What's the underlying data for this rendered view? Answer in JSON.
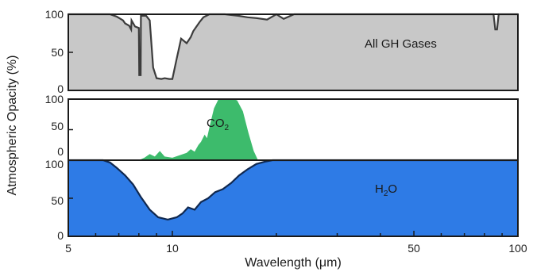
{
  "chart_data": [
    {
      "type": "area",
      "panel": "top",
      "label": "All GH Gases",
      "color": "#c8c8c8",
      "x_scale": "log",
      "xlim": [
        5,
        100
      ],
      "ylim": [
        0,
        100
      ],
      "yticks": [
        "0",
        "50",
        "100"
      ],
      "series": [
        {
          "name": "All GH Gases",
          "x": [
            5,
            6.6,
            6.9,
            7.2,
            7.3,
            7.5,
            7.6,
            7.62,
            7.8,
            8.0,
            8.02,
            8.1,
            8.11,
            8.4,
            8.6,
            8.8,
            9.0,
            9.3,
            9.5,
            9.8,
            10.0,
            10.3,
            10.6,
            11.0,
            11.3,
            11.5,
            12.0,
            12.3,
            12.8,
            13.3,
            14.2,
            15.5,
            16.5,
            17.5,
            18.8,
            20.0,
            21,
            22.5,
            25,
            28,
            40,
            60,
            85,
            86,
            87,
            88,
            100
          ],
          "y": [
            100,
            100,
            97,
            92,
            88,
            85,
            80,
            92,
            84,
            82,
            20,
            20,
            98,
            98,
            92,
            30,
            16,
            15,
            16,
            15,
            15,
            42,
            68,
            62,
            70,
            78,
            90,
            96,
            100,
            100,
            100,
            98,
            96,
            95,
            93,
            100,
            94,
            100,
            100,
            100,
            100,
            100,
            100,
            80,
            80,
            100,
            100
          ]
        }
      ]
    },
    {
      "type": "area",
      "panel": "bottom",
      "x_scale": "log",
      "xlim": [
        5,
        100
      ],
      "xticks": [
        "5",
        "10",
        "50",
        "100"
      ],
      "xlabel": "Wavelength (μm)",
      "ylabel": "Atmospheric Opacity (%)",
      "series": [
        {
          "name": "CO2",
          "label_base": "CO",
          "label_sub": "2",
          "color": "#3dbb6c",
          "ylim": [
            0,
            100
          ],
          "yticks": [
            "0",
            "50",
            "100"
          ],
          "x": [
            5,
            8.0,
            8.3,
            8.6,
            8.9,
            9.2,
            9.5,
            10.0,
            10.5,
            11.0,
            11.3,
            11.6,
            11.9,
            12.1,
            12.4,
            12.6,
            12.9,
            13.2,
            13.6,
            14.2,
            14.9,
            15.4,
            16.0,
            16.6,
            17.2,
            17.7,
            100
          ],
          "y": [
            0,
            0,
            4,
            10,
            6,
            15,
            6,
            4,
            8,
            12,
            18,
            14,
            25,
            30,
            42,
            36,
            62,
            85,
            100,
            100,
            100,
            98,
            80,
            45,
            15,
            0,
            0
          ]
        },
        {
          "name": "H2O",
          "label_base": "H",
          "label_sub": "2",
          "label_rest": "O",
          "color": "#2e7be6",
          "ylim": [
            0,
            100
          ],
          "yticks": [
            "0",
            "50",
            "100"
          ],
          "x": [
            5,
            6.3,
            6.6,
            6.9,
            7.3,
            7.7,
            8.1,
            8.6,
            9.1,
            9.7,
            10.3,
            10.7,
            11.1,
            11.6,
            12.1,
            12.7,
            13.3,
            14.0,
            14.8,
            15.6,
            16.5,
            17.5,
            18.5,
            19.5,
            100
          ],
          "y": [
            100,
            100,
            97,
            90,
            80,
            68,
            52,
            35,
            25,
            22,
            25,
            30,
            38,
            35,
            45,
            50,
            58,
            62,
            70,
            80,
            88,
            95,
            98,
            100,
            100
          ]
        }
      ]
    }
  ]
}
